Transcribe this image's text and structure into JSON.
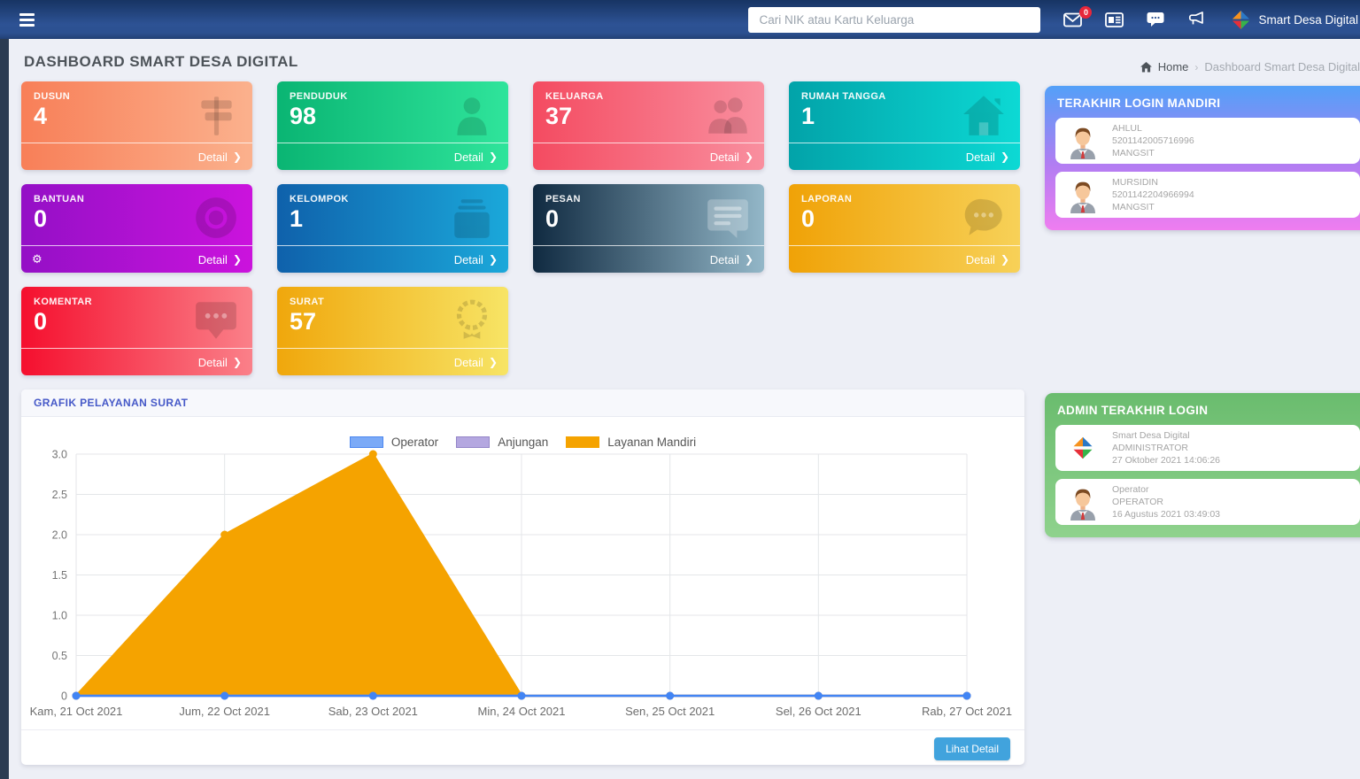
{
  "navbar": {
    "search_placeholder": "Cari NIK atau Kartu Keluarga",
    "mail_badge": "0",
    "brand": "Smart Desa Digital"
  },
  "page": {
    "title": "DASHBOARD SMART DESA DIGITAL",
    "breadcrumb": {
      "home": "Home",
      "separator": "›",
      "current": "Dashboard Smart Desa Digital"
    }
  },
  "cards": [
    {
      "label": "DUSUN",
      "value": "4",
      "detail_label": "Detail",
      "icon": "signpost",
      "gradient": [
        "#f87f58",
        "#fbb18d"
      ]
    },
    {
      "label": "PENDUDUK",
      "value": "98",
      "detail_label": "Detail",
      "icon": "person",
      "gradient": [
        "#0ab573",
        "#2fe49b"
      ]
    },
    {
      "label": "KELUARGA",
      "value": "37",
      "detail_label": "Detail",
      "icon": "people",
      "gradient": [
        "#f44b61",
        "#f98f9f"
      ]
    },
    {
      "label": "RUMAH TANGGA",
      "value": "1",
      "detail_label": "Detail",
      "icon": "house",
      "gradient": [
        "#02a3a9",
        "#0cd9d4"
      ]
    },
    {
      "label": "BANTUAN",
      "value": "0",
      "detail_label": "Detail",
      "icon": "lifebuoy",
      "gradient": [
        "#9410c6",
        "#cb13dd"
      ]
    },
    {
      "label": "KELOMPOK",
      "value": "1",
      "detail_label": "Detail",
      "icon": "briefcase",
      "gradient": [
        "#0f61ab",
        "#1ba8da"
      ]
    },
    {
      "label": "PESAN",
      "value": "0",
      "detail_label": "Detail",
      "icon": "chat-lines",
      "gradient": [
        "#102a41",
        "#93b7c8"
      ]
    },
    {
      "label": "LAPORAN",
      "value": "0",
      "detail_label": "Detail",
      "icon": "chat-dots",
      "gradient": [
        "#f0a207",
        "#f7d158"
      ]
    },
    {
      "label": "KOMENTAR",
      "value": "0",
      "detail_label": "Detail",
      "icon": "comment",
      "gradient": [
        "#f50f2e",
        "#fa8089"
      ]
    },
    {
      "label": "SURAT",
      "value": "57",
      "detail_label": "Detail",
      "icon": "medal",
      "gradient": [
        "#f0a70c",
        "#f7e465"
      ]
    }
  ],
  "panels": {
    "mandiri": {
      "title": "TERAKHIR LOGIN MANDIRI",
      "items": [
        {
          "name": "AHLUL",
          "nik": "5201142005716996",
          "village": "MANGSIT"
        },
        {
          "name": "MURSIDIN",
          "nik": "5201142204966994",
          "village": "MANGSIT"
        }
      ]
    },
    "admin": {
      "title": "ADMIN TERAKHIR LOGIN",
      "items": [
        {
          "name": "Smart Desa Digital",
          "role": "ADMINISTRATOR",
          "time": "27 Oktober 2021 14:06:26"
        },
        {
          "name": "Operator",
          "role": "OPERATOR",
          "time": "16 Agustus 2021 03:49:03"
        }
      ]
    }
  },
  "chart_panel": {
    "title": "GRAFIK PELAYANAN SURAT",
    "detail_button": "Lihat Detail"
  },
  "chart_data": {
    "type": "area",
    "title": "GRAFIK PELAYANAN SURAT",
    "categories": [
      "Kam, 21 Oct 2021",
      "Jum, 22 Oct 2021",
      "Sab, 23 Oct 2021",
      "Min, 24 Oct 2021",
      "Sen, 25 Oct 2021",
      "Sel, 26 Oct 2021",
      "Rab, 27 Oct 2021"
    ],
    "series": [
      {
        "name": "Operator",
        "color": "#4285f4",
        "swatch": "#7baaf7",
        "border": "#4c87f0",
        "fill": false,
        "values": [
          0,
          0,
          0,
          0,
          0,
          0,
          0
        ]
      },
      {
        "name": "Anjungan",
        "color": "#9486c8",
        "swatch": "#b4a7e0",
        "border": "#9486c8",
        "fill": false,
        "values": [
          0,
          0,
          0,
          0,
          0,
          0,
          0
        ]
      },
      {
        "name": "Layanan Mandiri",
        "color": "#f5a300",
        "swatch": "#f5a300",
        "border": "#f5a300",
        "fill": true,
        "values": [
          0,
          2,
          3,
          0,
          0,
          0,
          0
        ]
      }
    ],
    "xlabel": "",
    "ylabel": "",
    "ylim": [
      0,
      3
    ],
    "yticks": [
      "0",
      "0.5",
      "1.0",
      "1.5",
      "2.0",
      "2.5",
      "3.0"
    ],
    "grid": true,
    "legend_position": "top"
  },
  "colors": {
    "navbar_top": "#173463",
    "navbar_bottom": "#2d5294",
    "background": "#edeff6",
    "button_blue": "#41a3dd",
    "panel_mandiri_top": "#53a0f8",
    "panel_mandiri_bottom": "#ef7df0",
    "panel_admin_top": "#6abc6e",
    "panel_admin_bottom": "#8fd28d"
  }
}
